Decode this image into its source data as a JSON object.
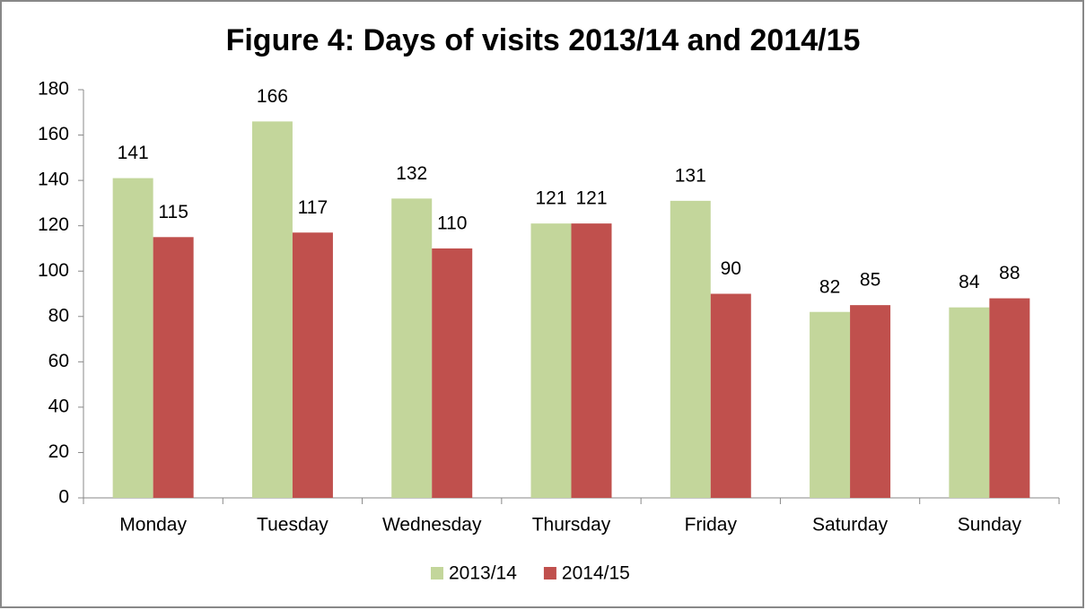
{
  "chart_data": {
    "type": "bar",
    "title": "Figure 4: Days of visits 2013/14 and 2014/15",
    "categories": [
      "Monday",
      "Tuesday",
      "Wednesday",
      "Thursday",
      "Friday",
      "Saturday",
      "Sunday"
    ],
    "series": [
      {
        "name": "2013/14",
        "color": "#c3d69b",
        "values": [
          141,
          166,
          132,
          121,
          131,
          82,
          84
        ]
      },
      {
        "name": "2014/15",
        "color": "#c0504d",
        "values": [
          115,
          117,
          110,
          121,
          90,
          85,
          88
        ]
      }
    ],
    "ylim": [
      0,
      180
    ],
    "yticks": [
      0,
      20,
      40,
      60,
      80,
      100,
      120,
      140,
      160,
      180
    ],
    "grid": false,
    "legend": "bottom"
  }
}
